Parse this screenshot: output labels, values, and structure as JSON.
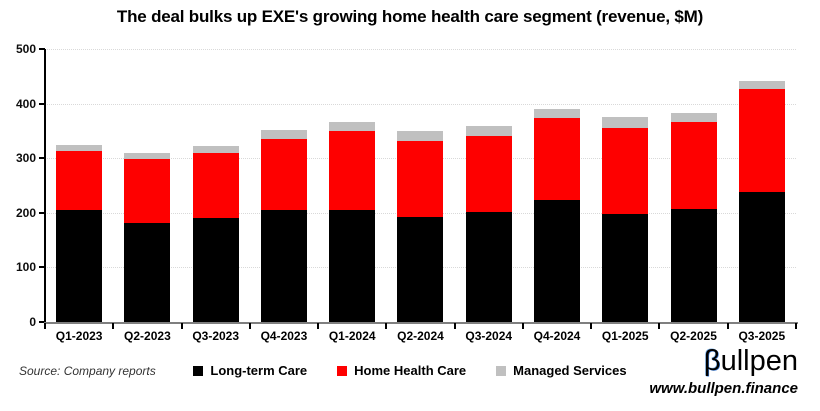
{
  "chart_data": {
    "type": "bar",
    "stacked": true,
    "title": "The deal bulks up EXE's growing home health care segment (revenue, $M)",
    "xlabel": "",
    "ylabel": "",
    "categories": [
      "Q1-2023",
      "Q2-2023",
      "Q3-2023",
      "Q4-2023",
      "Q1-2024",
      "Q2-2024",
      "Q3-2024",
      "Q4-2024",
      "Q1-2025",
      "Q2-2025",
      "Q3-2025"
    ],
    "series": [
      {
        "name": "Long-term Care",
        "color": "#000000",
        "values": [
          206,
          181,
          191,
          205,
          206,
          193,
          201,
          224,
          197,
          207,
          238
        ]
      },
      {
        "name": "Home Health Care",
        "color": "#fe0000",
        "values": [
          108,
          118,
          119,
          130,
          143,
          139,
          140,
          149,
          159,
          159,
          188
        ]
      },
      {
        "name": "Managed Services",
        "color": "#c0c0c0",
        "values": [
          10,
          10,
          13,
          16,
          17,
          18,
          18,
          18,
          19,
          16,
          16
        ]
      }
    ],
    "totals": [
      324,
      309,
      323,
      351,
      366,
      350,
      359,
      391,
      375,
      382,
      442
    ],
    "ylim": [
      0,
      500
    ],
    "ytick_step": 100,
    "ytick_labels": [
      "0",
      "100",
      "200",
      "300",
      "400",
      "500"
    ],
    "grid": "horizontal-dotted",
    "legend_position": "bottom-center",
    "colors": {
      "gridline": "#d9d9d9",
      "y_axis": "#000000",
      "x_axis": "#7f7f7f",
      "accent_red": "#fe0000",
      "accent_gray": "#c0c0c0"
    }
  },
  "footer": {
    "source": "Source: Company reports",
    "brand_beta": "β",
    "brand_rest": "ullpen",
    "url": "www.bullpen.finance"
  }
}
